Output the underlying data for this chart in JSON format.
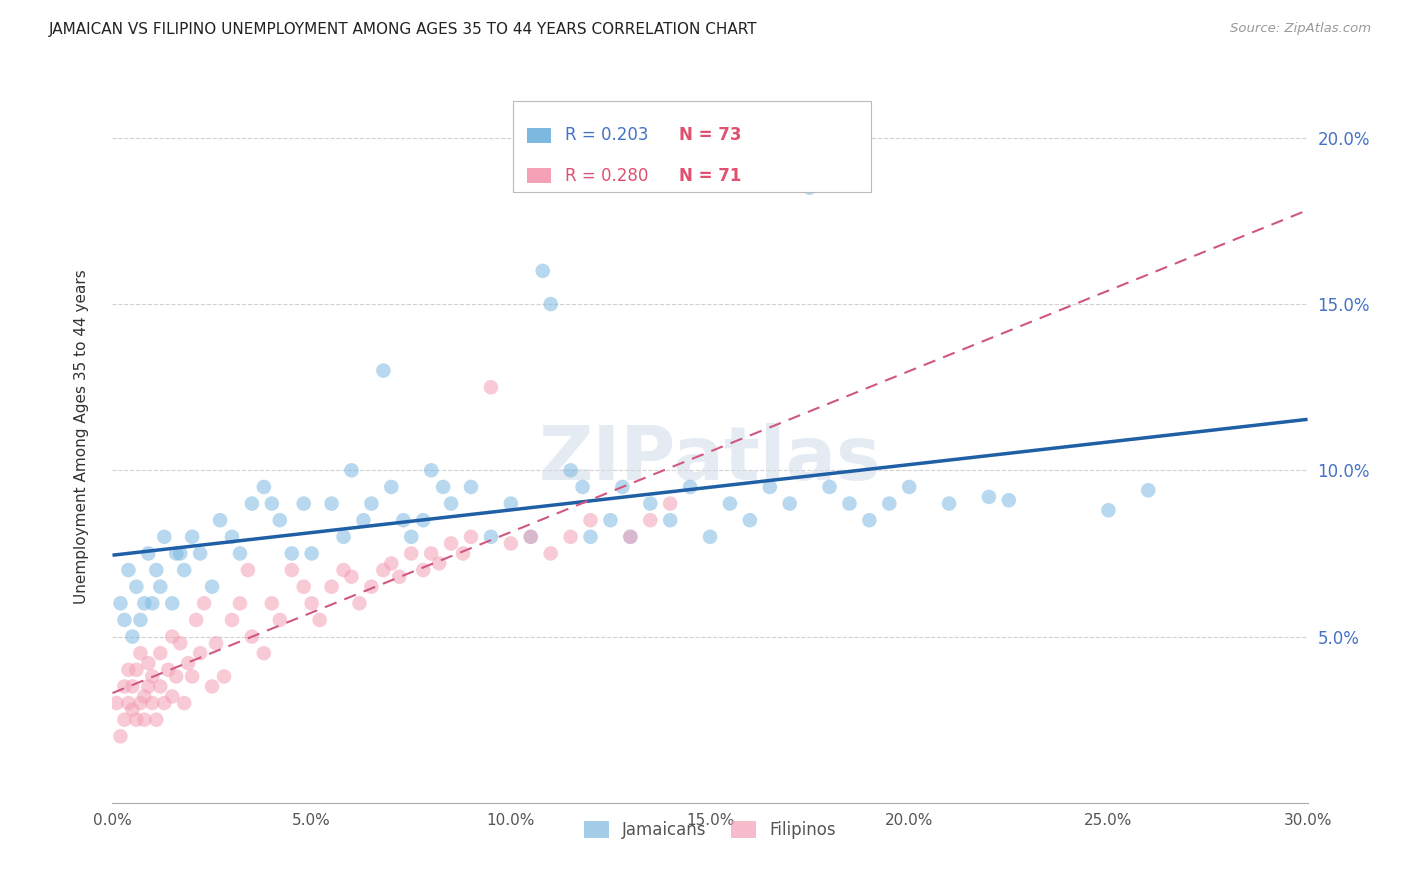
{
  "title": "JAMAICAN VS FILIPINO UNEMPLOYMENT AMONG AGES 35 TO 44 YEARS CORRELATION CHART",
  "source": "Source: ZipAtlas.com",
  "ylabel": "Unemployment Among Ages 35 to 44 years",
  "xlabel_jamaican": "Jamaicans",
  "xlabel_filipino": "Filipinos",
  "xlim": [
    0.0,
    0.3
  ],
  "ylim": [
    0.0,
    0.22
  ],
  "xticks": [
    0.0,
    0.05,
    0.1,
    0.15,
    0.2,
    0.25,
    0.3
  ],
  "yticks": [
    0.05,
    0.1,
    0.15,
    0.2
  ],
  "ytick_labels": [
    "5.0%",
    "10.0%",
    "15.0%",
    "20.0%"
  ],
  "xtick_labels": [
    "0.0%",
    "5.0%",
    "10.0%",
    "15.0%",
    "20.0%",
    "25.0%",
    "30.0%"
  ],
  "legend_r_jamaican": "R = 0.203",
  "legend_n_jamaican": "N = 73",
  "legend_r_filipino": "R = 0.280",
  "legend_n_filipino": "N = 71",
  "jamaican_color": "#7db8e0",
  "jamaican_line_color": "#1f5fa6",
  "filipino_color": "#f4a0b5",
  "filipino_line_color": "#d05880",
  "watermark_color": "#d0dce8",
  "background_color": "#ffffff",
  "grid_color": "#cccccc",
  "jamaican_x": [
    0.002,
    0.003,
    0.004,
    0.005,
    0.006,
    0.007,
    0.008,
    0.009,
    0.01,
    0.011,
    0.012,
    0.013,
    0.015,
    0.016,
    0.017,
    0.018,
    0.02,
    0.022,
    0.025,
    0.027,
    0.03,
    0.032,
    0.035,
    0.038,
    0.04,
    0.042,
    0.045,
    0.048,
    0.05,
    0.055,
    0.058,
    0.06,
    0.063,
    0.065,
    0.068,
    0.07,
    0.073,
    0.075,
    0.078,
    0.08,
    0.083,
    0.085,
    0.09,
    0.095,
    0.1,
    0.105,
    0.108,
    0.11,
    0.115,
    0.118,
    0.12,
    0.125,
    0.128,
    0.13,
    0.135,
    0.14,
    0.145,
    0.15,
    0.155,
    0.16,
    0.165,
    0.17,
    0.175,
    0.18,
    0.185,
    0.19,
    0.195,
    0.2,
    0.21,
    0.22,
    0.225,
    0.25,
    0.26
  ],
  "jamaican_y": [
    0.06,
    0.055,
    0.07,
    0.05,
    0.065,
    0.055,
    0.06,
    0.075,
    0.06,
    0.07,
    0.065,
    0.08,
    0.06,
    0.075,
    0.075,
    0.07,
    0.08,
    0.075,
    0.065,
    0.085,
    0.08,
    0.075,
    0.09,
    0.095,
    0.09,
    0.085,
    0.075,
    0.09,
    0.075,
    0.09,
    0.08,
    0.1,
    0.085,
    0.09,
    0.13,
    0.095,
    0.085,
    0.08,
    0.085,
    0.1,
    0.095,
    0.09,
    0.095,
    0.08,
    0.09,
    0.08,
    0.16,
    0.15,
    0.1,
    0.095,
    0.08,
    0.085,
    0.095,
    0.08,
    0.09,
    0.085,
    0.095,
    0.08,
    0.09,
    0.085,
    0.095,
    0.09,
    0.185,
    0.095,
    0.09,
    0.085,
    0.09,
    0.095,
    0.09,
    0.092,
    0.091,
    0.088,
    0.094
  ],
  "filipino_x": [
    0.001,
    0.002,
    0.003,
    0.003,
    0.004,
    0.004,
    0.005,
    0.005,
    0.006,
    0.006,
    0.007,
    0.007,
    0.008,
    0.008,
    0.009,
    0.009,
    0.01,
    0.01,
    0.011,
    0.012,
    0.012,
    0.013,
    0.014,
    0.015,
    0.015,
    0.016,
    0.017,
    0.018,
    0.019,
    0.02,
    0.021,
    0.022,
    0.023,
    0.025,
    0.026,
    0.028,
    0.03,
    0.032,
    0.034,
    0.035,
    0.038,
    0.04,
    0.042,
    0.045,
    0.048,
    0.05,
    0.052,
    0.055,
    0.058,
    0.06,
    0.062,
    0.065,
    0.068,
    0.07,
    0.072,
    0.075,
    0.078,
    0.08,
    0.082,
    0.085,
    0.088,
    0.09,
    0.095,
    0.1,
    0.105,
    0.11,
    0.115,
    0.12,
    0.13,
    0.135,
    0.14
  ],
  "filipino_y": [
    0.03,
    0.02,
    0.035,
    0.025,
    0.03,
    0.04,
    0.028,
    0.035,
    0.025,
    0.04,
    0.03,
    0.045,
    0.032,
    0.025,
    0.035,
    0.042,
    0.03,
    0.038,
    0.025,
    0.045,
    0.035,
    0.03,
    0.04,
    0.032,
    0.05,
    0.038,
    0.048,
    0.03,
    0.042,
    0.038,
    0.055,
    0.045,
    0.06,
    0.035,
    0.048,
    0.038,
    0.055,
    0.06,
    0.07,
    0.05,
    0.045,
    0.06,
    0.055,
    0.07,
    0.065,
    0.06,
    0.055,
    0.065,
    0.07,
    0.068,
    0.06,
    0.065,
    0.07,
    0.072,
    0.068,
    0.075,
    0.07,
    0.075,
    0.072,
    0.078,
    0.075,
    0.08,
    0.125,
    0.078,
    0.08,
    0.075,
    0.08,
    0.085,
    0.08,
    0.085,
    0.09
  ]
}
